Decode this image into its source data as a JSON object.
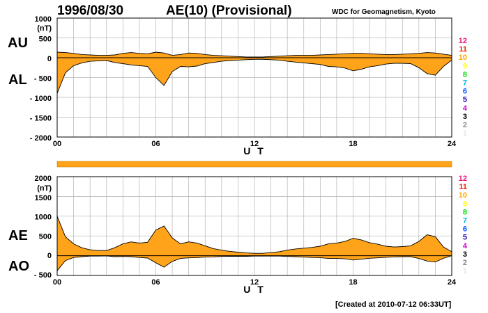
{
  "header": {
    "date": "1996/08/30",
    "title": "AE(10) (Provisional)",
    "source": "WDC for Geomagnetism, Kyoto"
  },
  "footer": {
    "created": "[Created at 2010-07-12 06:33UT]"
  },
  "colors": {
    "fill": "#ffa31a",
    "grid": "#b4b4b4",
    "level_colors": [
      "#e5e5e5",
      "#888888",
      "#000000",
      "#cc00cc",
      "#2200aa",
      "#0055ff",
      "#00b8e0",
      "#00dd00",
      "#ffff00",
      "#ffa500",
      "#ee2200",
      "#ee1177"
    ]
  },
  "level_scale": [
    "12",
    "11",
    "10",
    "9",
    "8",
    "7",
    "6",
    "5",
    "4",
    "3",
    "2",
    "1"
  ],
  "chart_data": [
    {
      "type": "area",
      "panel": "AU/AL",
      "series_labels": [
        "AU",
        "AL"
      ],
      "ylabel": "(nT)",
      "xlabel": "U T",
      "ylim": [
        -2000,
        1000
      ],
      "yticks": [
        "1000",
        "500",
        "0",
        "- 500",
        "- 1000",
        "- 1500",
        "- 2000"
      ],
      "xticks": [
        "00",
        "06",
        "12",
        "18",
        "24"
      ],
      "x_hours": [
        0,
        0.5,
        1,
        1.5,
        2,
        2.5,
        3,
        3.5,
        4,
        4.5,
        5,
        5.5,
        6,
        6.5,
        7,
        7.5,
        8,
        8.5,
        9,
        9.5,
        10,
        10.5,
        11,
        11.5,
        12,
        12.5,
        13,
        13.5,
        14,
        14.5,
        15,
        15.5,
        16,
        16.5,
        17,
        17.5,
        18,
        18.5,
        19,
        19.5,
        20,
        20.5,
        21,
        21.5,
        22,
        22.5,
        23,
        23.5,
        24
      ],
      "series": [
        {
          "name": "AU",
          "values": [
            140,
            130,
            110,
            80,
            70,
            60,
            60,
            70,
            110,
            130,
            110,
            100,
            140,
            120,
            60,
            80,
            120,
            110,
            80,
            60,
            50,
            40,
            30,
            20,
            20,
            20,
            30,
            40,
            50,
            60,
            60,
            60,
            70,
            80,
            90,
            100,
            110,
            110,
            100,
            90,
            80,
            80,
            90,
            100,
            110,
            130,
            120,
            90,
            60
          ]
        },
        {
          "name": "AL",
          "values": [
            -900,
            -380,
            -200,
            -130,
            -90,
            -80,
            -70,
            -120,
            -150,
            -180,
            -200,
            -220,
            -500,
            -700,
            -350,
            -220,
            -230,
            -210,
            -150,
            -120,
            -90,
            -70,
            -60,
            -50,
            -40,
            -40,
            -50,
            -60,
            -90,
            -110,
            -130,
            -150,
            -170,
            -220,
            -230,
            -260,
            -330,
            -290,
            -230,
            -200,
            -160,
            -140,
            -140,
            -150,
            -250,
            -400,
            -440,
            -220,
            -60
          ]
        }
      ]
    },
    {
      "type": "area",
      "panel": "AE/AO",
      "series_labels": [
        "AE",
        "AO"
      ],
      "ylabel": "(nT)",
      "xlabel": "U T",
      "ylim": [
        -500,
        2000
      ],
      "yticks": [
        "2000",
        "1500",
        "1000",
        "500",
        "0",
        "- 500"
      ],
      "xticks": [
        "00",
        "06",
        "12",
        "18",
        "24"
      ],
      "x_hours": [
        0,
        0.5,
        1,
        1.5,
        2,
        2.5,
        3,
        3.5,
        4,
        4.5,
        5,
        5.5,
        6,
        6.5,
        7,
        7.5,
        8,
        8.5,
        9,
        9.5,
        10,
        10.5,
        11,
        11.5,
        12,
        12.5,
        13,
        13.5,
        14,
        14.5,
        15,
        15.5,
        16,
        16.5,
        17,
        17.5,
        18,
        18.5,
        19,
        19.5,
        20,
        20.5,
        21,
        21.5,
        22,
        22.5,
        23,
        23.5,
        24
      ],
      "series": [
        {
          "name": "AE",
          "values": [
            1000,
            480,
            300,
            200,
            150,
            130,
            130,
            200,
            300,
            350,
            320,
            340,
            650,
            750,
            450,
            300,
            350,
            320,
            250,
            180,
            140,
            110,
            90,
            70,
            60,
            60,
            80,
            100,
            140,
            170,
            190,
            210,
            240,
            300,
            320,
            360,
            440,
            400,
            330,
            290,
            240,
            220,
            230,
            250,
            360,
            530,
            480,
            220,
            100
          ]
        },
        {
          "name": "AO",
          "values": [
            -380,
            -125,
            -45,
            -25,
            -10,
            -10,
            -5,
            -25,
            -20,
            -25,
            -45,
            -60,
            -180,
            -290,
            -145,
            -70,
            -55,
            -50,
            -35,
            -30,
            -20,
            -15,
            -15,
            -15,
            -10,
            -10,
            -10,
            -10,
            -20,
            -25,
            -35,
            -45,
            -50,
            -70,
            -70,
            -80,
            -110,
            -90,
            -65,
            -55,
            -40,
            -30,
            -25,
            -25,
            -70,
            -135,
            -160,
            -65,
            0
          ]
        }
      ]
    }
  ]
}
